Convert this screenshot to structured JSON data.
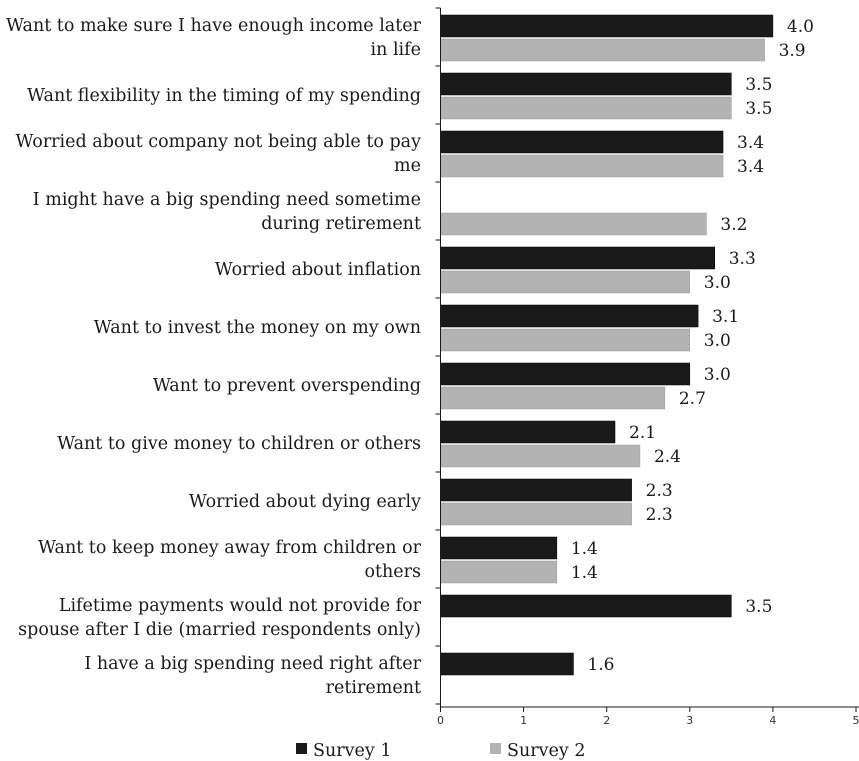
{
  "chart_data": {
    "type": "bar",
    "orientation": "horizontal",
    "categories": [
      [
        "Want to make sure I have enough income later",
        "in life"
      ],
      [
        "Want flexibility in the timing of my spending"
      ],
      [
        "Worried about company not being able to pay",
        "me"
      ],
      [
        "I might have a big spending need sometime",
        "during retirement"
      ],
      [
        "Worried about inflation"
      ],
      [
        "Want to invest the money on my own"
      ],
      [
        "Want to prevent overspending"
      ],
      [
        "Want to give money to children or others"
      ],
      [
        "Worried about dying early"
      ],
      [
        "Want to keep money away from children or",
        "others"
      ],
      [
        "Lifetime payments would not provide for",
        "spouse after I die (married respondents only)"
      ],
      [
        "I have a big spending need right after",
        "retirement"
      ]
    ],
    "series": [
      {
        "name": "Survey 1",
        "color": "#1a1a1a",
        "values": [
          4.0,
          3.5,
          3.4,
          null,
          3.3,
          3.1,
          3.0,
          2.1,
          2.3,
          1.4,
          3.5,
          1.6
        ],
        "labels": [
          "4.0",
          "3.5",
          "3.4",
          null,
          "3.3",
          "3.1",
          "3.0",
          "2.1",
          "2.3",
          "1.4",
          "3.5",
          "1.6"
        ]
      },
      {
        "name": "Survey 2",
        "color": "#b3b3b3",
        "values": [
          3.9,
          3.5,
          3.4,
          3.2,
          3.0,
          3.0,
          2.7,
          2.4,
          2.3,
          1.4,
          null,
          null
        ],
        "labels": [
          "3.9",
          "3.5",
          "3.4",
          "3.2",
          "3.0",
          "3.0",
          "2.7",
          "2.4",
          "2.3",
          "1.4",
          null,
          null
        ]
      }
    ],
    "xlim": [
      0,
      5
    ],
    "xticks": [
      "0",
      "1",
      "2",
      "3",
      "4",
      "5"
    ],
    "title": "",
    "xlabel": "",
    "ylabel": "",
    "grid": false,
    "legend": "bottom"
  }
}
